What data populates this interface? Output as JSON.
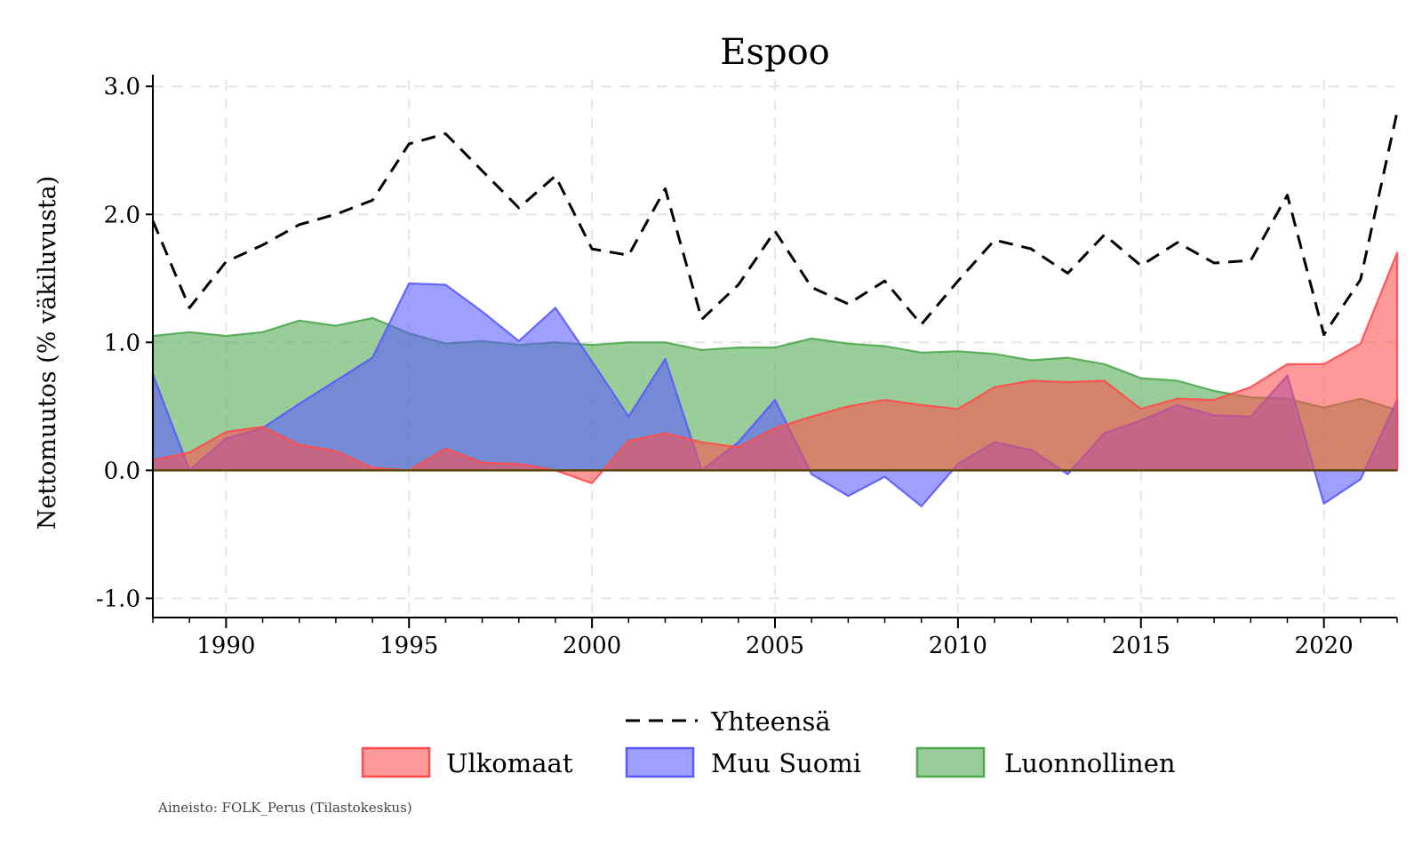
{
  "chart_data": {
    "type": "area",
    "title": "Espoo",
    "xlabel": "",
    "ylabel": "Nettomuutos (% väkiluvusta)",
    "xlim": [
      1988,
      2022
    ],
    "ylim": [
      -1.15,
      3.05
    ],
    "x_ticks": [
      1990,
      1995,
      2000,
      2005,
      2010,
      2015,
      2020
    ],
    "x_tick_labels": [
      "1990",
      "1995",
      "2000",
      "2005",
      "2010",
      "2015",
      "2020"
    ],
    "y_ticks": [
      -1.0,
      0.0,
      1.0,
      2.0,
      3.0
    ],
    "y_tick_labels": [
      "-1.0",
      "0.0",
      "1.0",
      "2.0",
      "3.0"
    ],
    "grid": true,
    "legend_position": "bottom",
    "x": [
      1988,
      1989,
      1990,
      1991,
      1992,
      1993,
      1994,
      1995,
      1996,
      1997,
      1998,
      1999,
      2000,
      2001,
      2002,
      2003,
      2004,
      2005,
      2006,
      2007,
      2008,
      2009,
      2010,
      2011,
      2012,
      2013,
      2014,
      2015,
      2016,
      2017,
      2018,
      2019,
      2020,
      2021,
      2022
    ],
    "series": [
      {
        "name": "Luonnollinen",
        "kind": "area",
        "color": "#4fa84f",
        "values": [
          1.05,
          1.08,
          1.05,
          1.08,
          1.17,
          1.13,
          1.19,
          1.07,
          0.99,
          1.01,
          0.98,
          1.0,
          0.98,
          1.0,
          1.0,
          0.94,
          0.96,
          0.96,
          1.03,
          0.99,
          0.97,
          0.92,
          0.93,
          0.91,
          0.86,
          0.88,
          0.83,
          0.72,
          0.7,
          0.62,
          0.57,
          0.56,
          0.49,
          0.56,
          0.47
        ]
      },
      {
        "name": "Muu Suomi",
        "kind": "area",
        "color": "#5a5aff",
        "values": [
          0.75,
          0.0,
          0.25,
          0.33,
          0.52,
          0.7,
          0.88,
          1.46,
          1.45,
          1.24,
          1.01,
          1.27,
          0.85,
          0.42,
          0.87,
          0.0,
          0.22,
          0.55,
          -0.03,
          -0.2,
          -0.05,
          -0.28,
          0.05,
          0.22,
          0.16,
          -0.03,
          0.29,
          0.39,
          0.51,
          0.43,
          0.42,
          0.74,
          -0.26,
          -0.07,
          0.55
        ]
      },
      {
        "name": "Ulkomaat",
        "kind": "area",
        "color": "#ff4d4d",
        "values": [
          0.08,
          0.14,
          0.3,
          0.34,
          0.2,
          0.15,
          0.02,
          0.0,
          0.17,
          0.06,
          0.05,
          0.0,
          -0.1,
          0.23,
          0.29,
          0.22,
          0.18,
          0.33,
          0.42,
          0.5,
          0.55,
          0.51,
          0.48,
          0.65,
          0.7,
          0.69,
          0.7,
          0.48,
          0.56,
          0.55,
          0.65,
          0.83,
          0.83,
          0.99,
          1.7
        ]
      },
      {
        "name": "Yhteensä",
        "kind": "line",
        "color": "#000000",
        "values": [
          1.95,
          1.27,
          1.63,
          1.76,
          1.92,
          2.0,
          2.11,
          2.55,
          2.63,
          2.34,
          2.05,
          2.3,
          1.73,
          1.68,
          2.2,
          1.18,
          1.45,
          1.87,
          1.43,
          1.3,
          1.48,
          1.14,
          1.48,
          1.8,
          1.73,
          1.54,
          1.84,
          1.6,
          1.78,
          1.62,
          1.64,
          2.15,
          1.06,
          1.49,
          2.8
        ]
      }
    ],
    "legend_line": "Yhteensä",
    "legend_areas": [
      "Ulkomaat",
      "Muu Suomi",
      "Luonnollinen"
    ]
  },
  "source_note": "Aineisto: FOLK_Perus (Tilastokeskus)"
}
